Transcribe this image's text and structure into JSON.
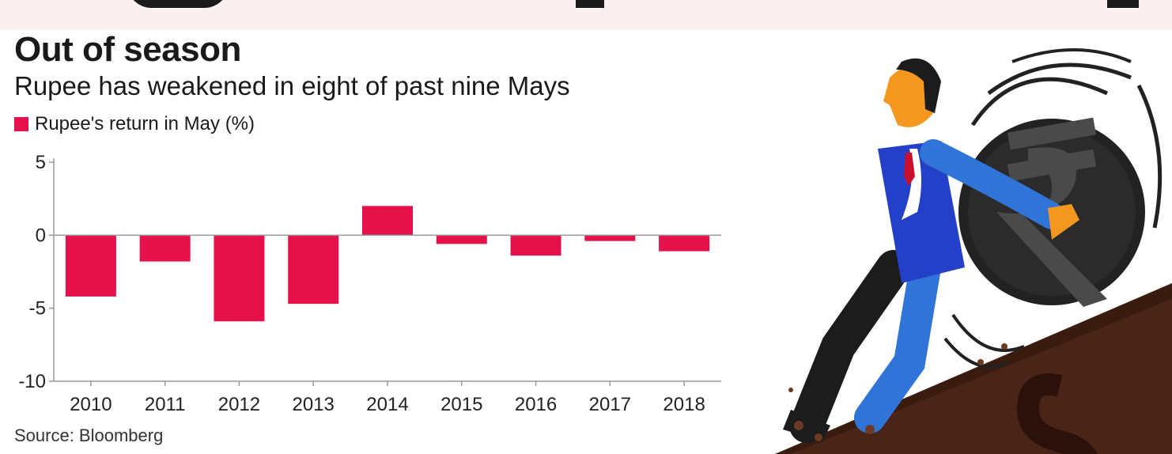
{
  "title": "Out of season",
  "subtitle": "Rupee has weakened in eight of past nine Mays",
  "source": "Source: Bloomberg",
  "colors": {
    "bar": "#e4114a",
    "axis": "#999999",
    "background_band": "#fbefef"
  },
  "chart_data": {
    "type": "bar",
    "categories": [
      "2010",
      "2011",
      "2012",
      "2013",
      "2014",
      "2015",
      "2016",
      "2017",
      "2018"
    ],
    "series": [
      {
        "name": "Rupee's return in May (%)",
        "values": [
          -4.2,
          -1.8,
          -5.9,
          -4.7,
          2.0,
          -0.6,
          -1.4,
          -0.4,
          -1.1
        ]
      }
    ],
    "title": "Out of season",
    "subtitle": "Rupee has weakened in eight of past nine Mays",
    "legend": [
      "Rupee's return in May (%)"
    ],
    "legend_position": "top-left",
    "ylim": [
      -10,
      5
    ],
    "yticks": [
      5,
      0,
      -5,
      -10
    ],
    "ytick_labels": [
      "5",
      "0",
      "-5",
      "-10"
    ],
    "grid": false,
    "source": "Source: Bloomberg"
  }
}
